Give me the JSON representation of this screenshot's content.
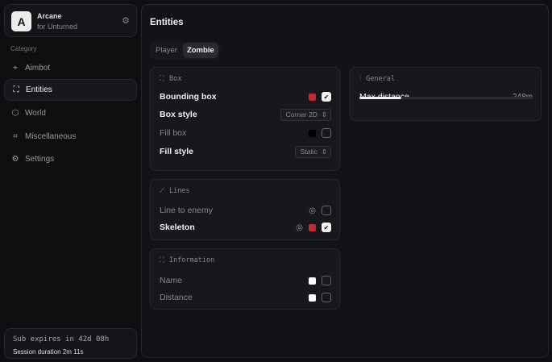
{
  "brand": {
    "logo": "A",
    "title": "Arcane",
    "subtitle": "for Unturned",
    "settings_icon": "gear-icon"
  },
  "sidebar": {
    "category_label": "Category",
    "items": [
      {
        "label": "Aimbot",
        "icon": "crosshair-icon",
        "active": false
      },
      {
        "label": "Entities",
        "icon": "entities-icon",
        "active": true
      },
      {
        "label": "World",
        "icon": "cube-icon",
        "active": false
      },
      {
        "label": "Miscellaneous",
        "icon": "grid-icon",
        "active": false
      },
      {
        "label": "Settings",
        "icon": "gear-icon",
        "active": false
      }
    ]
  },
  "footer": {
    "subscription": "Sub expires in 42d 08h",
    "session": "Session duration 2m 11s"
  },
  "main": {
    "title": "Entities",
    "tabs": [
      "Player",
      "Zombie"
    ],
    "active_tab": "Zombie",
    "box": {
      "title": "Box",
      "bounding_box": {
        "label": "Bounding box",
        "color": "#c42b2b",
        "checked": true
      },
      "box_style": {
        "label": "Box style",
        "value": "Corner 2D"
      },
      "fill_box": {
        "label": "Fill box",
        "color": "#000000",
        "checked": false
      },
      "fill_style": {
        "label": "Fill style",
        "value": "Static"
      }
    },
    "lines": {
      "title": "Lines",
      "line_to_enemy": {
        "label": "Line to enemy",
        "checked": false
      },
      "skeleton": {
        "label": "Skeleton",
        "color": "#c42b2b",
        "checked": true
      }
    },
    "information": {
      "title": "Information",
      "name": {
        "label": "Name",
        "color": "#ffffff",
        "checked": false
      },
      "distance": {
        "label": "Distance",
        "color": "#ffffff",
        "checked": false
      }
    },
    "general": {
      "title": "General",
      "max_distance": {
        "label": "Max distance",
        "value": "248m",
        "fraction": 0.24
      }
    }
  }
}
